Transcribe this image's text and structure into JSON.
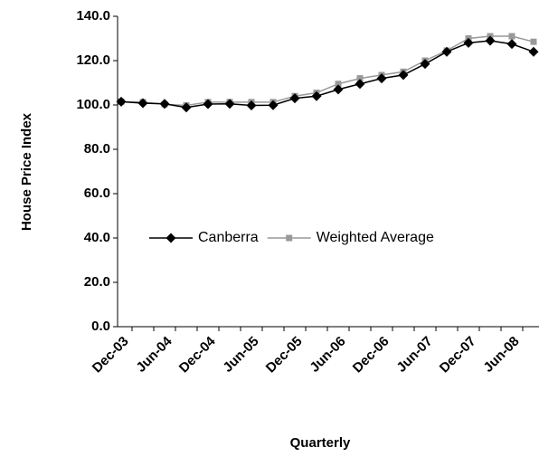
{
  "chart_data": {
    "type": "line",
    "x_label": "Quarterly",
    "y_label": "House Price Index",
    "categories": [
      "Dec-03",
      null,
      "Jun-04",
      null,
      "Dec-04",
      null,
      "Jun-05",
      null,
      "Dec-05",
      null,
      "Jun-06",
      null,
      "Dec-06",
      null,
      "Jun-07",
      null,
      "Dec-07",
      null,
      "Jun-08",
      null
    ],
    "series": [
      {
        "name": "Canberra",
        "color": "#000000",
        "values": [
          101.5,
          100.8,
          100.5,
          98.9,
          100.4,
          100.5,
          99.8,
          99.9,
          103,
          104,
          107,
          109.5,
          112,
          113.5,
          118.5,
          124,
          128,
          129,
          127.5,
          124
        ]
      },
      {
        "name": "Weighted Average",
        "color": "#999999",
        "values": [
          101.5,
          101.3,
          100.3,
          99.8,
          101.3,
          101.3,
          101.3,
          101.3,
          104,
          105.5,
          109.5,
          112,
          113.5,
          115,
          120,
          124.5,
          130,
          131,
          131,
          128.5
        ]
      }
    ],
    "ylim": [
      0,
      140
    ],
    "yticks": [
      {
        "value": 0,
        "label": "0.0"
      },
      {
        "value": 20,
        "label": "20.0"
      },
      {
        "value": 40,
        "label": "40.0"
      },
      {
        "value": 60,
        "label": "60.0"
      },
      {
        "value": 80,
        "label": "80.0"
      },
      {
        "value": 100,
        "label": "100.0"
      },
      {
        "value": 120,
        "label": "120.0"
      },
      {
        "value": 140,
        "label": "140.0"
      }
    ]
  }
}
